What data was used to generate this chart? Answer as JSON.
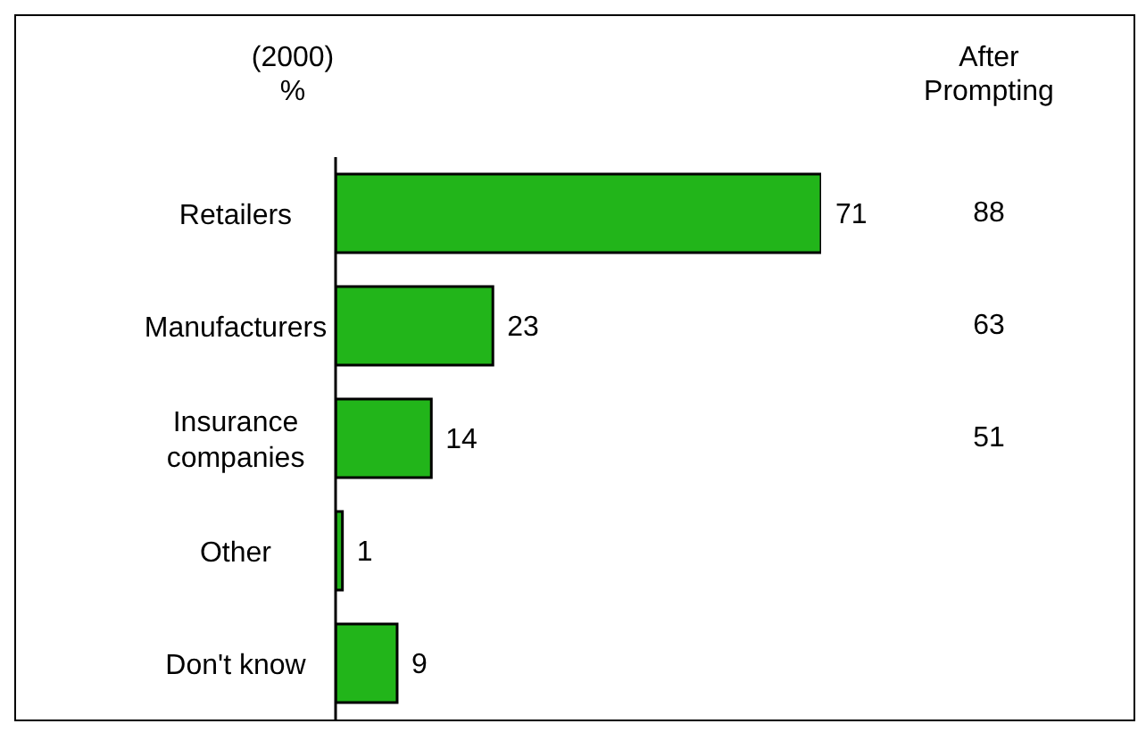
{
  "chart_data": {
    "type": "bar",
    "orientation": "horizontal",
    "title": "(2000)",
    "subtitle": "%",
    "categories": [
      "Retailers",
      "Manufacturers",
      "Insurance companies",
      "Other",
      "Don't know"
    ],
    "values": [
      71,
      23,
      14,
      1,
      9
    ],
    "color": "#22b51a",
    "data_labels": true,
    "grid": false,
    "legend": false,
    "annotations": [
      "After Prompting",
      "88",
      "63",
      "51"
    ]
  }
}
